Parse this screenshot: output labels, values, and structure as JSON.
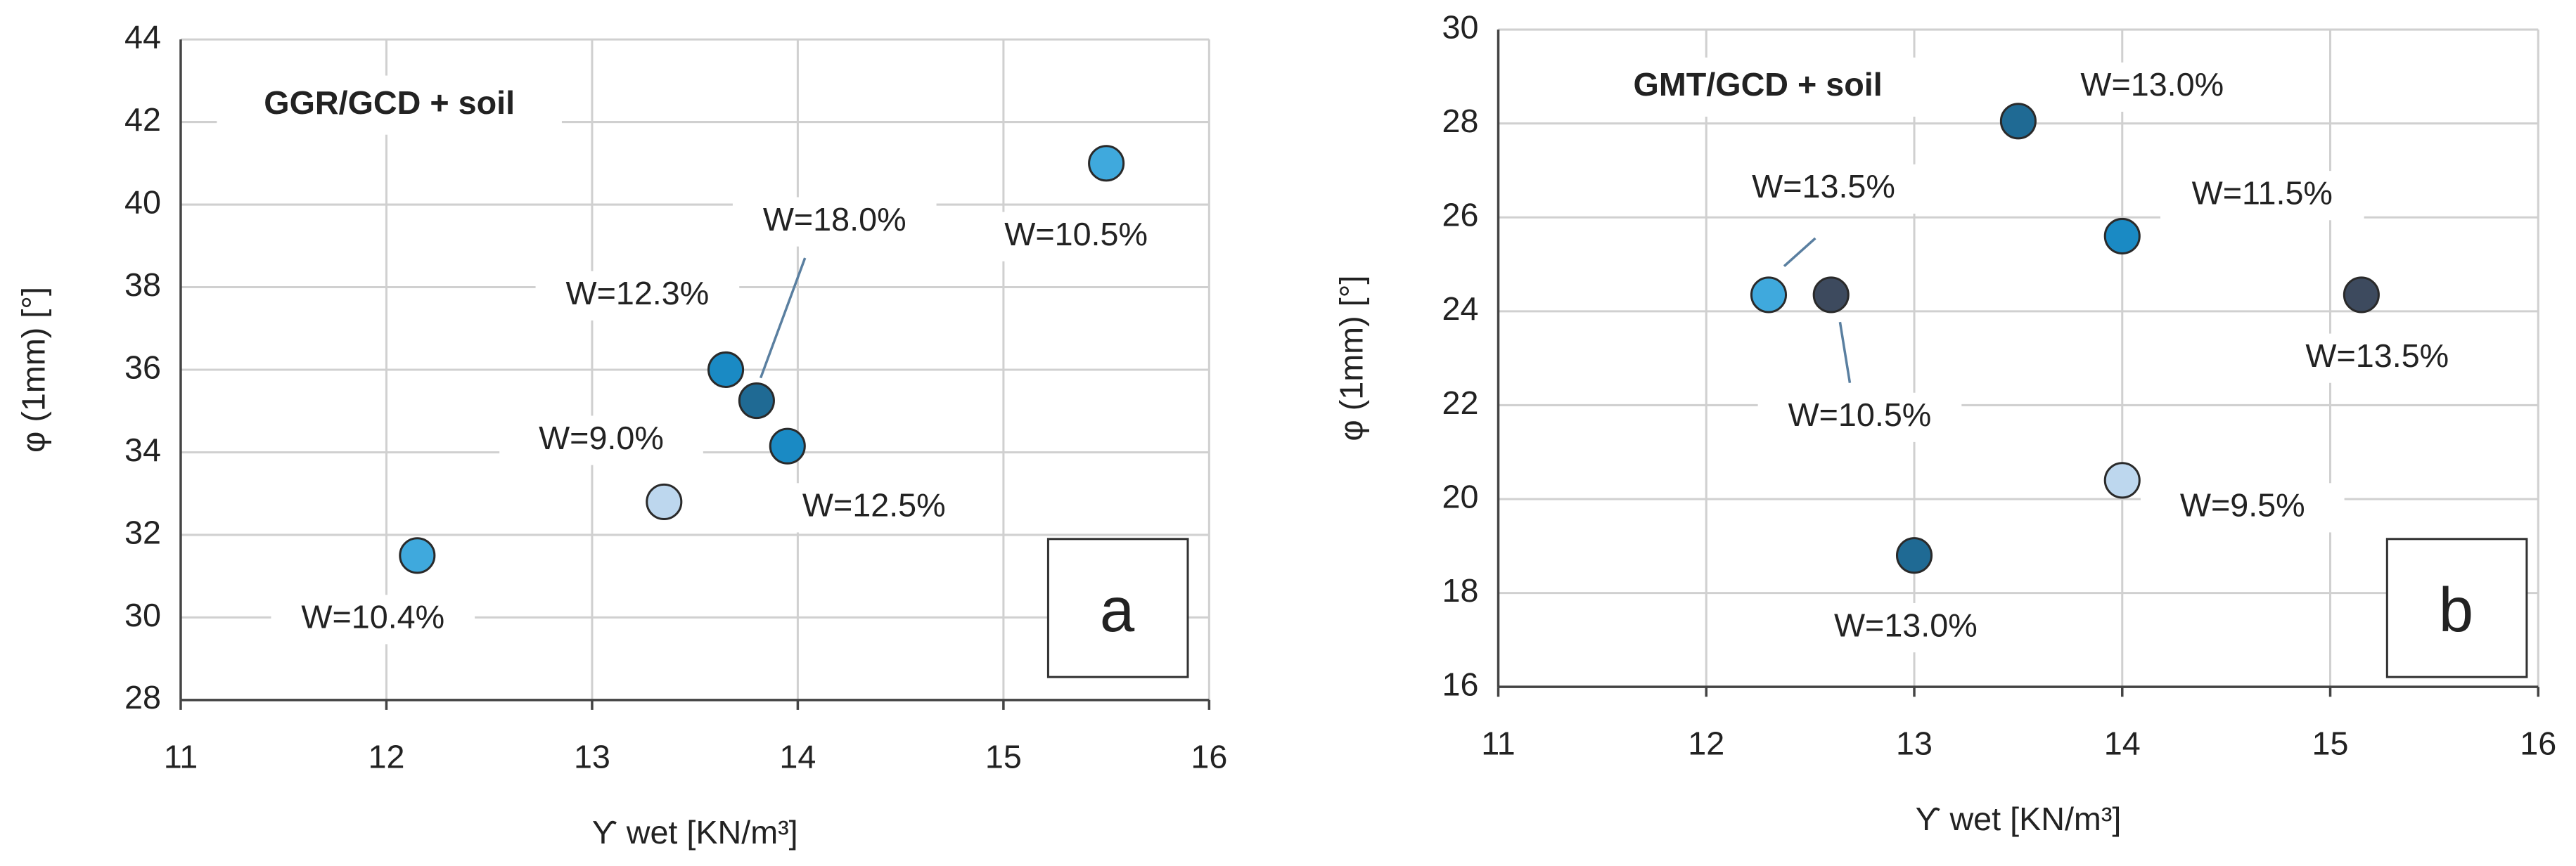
{
  "chart_data": [
    {
      "type": "scatter",
      "title": "GGR/GCD + soil",
      "panel_label": "a",
      "xlabel": "ϒ wet [KN/m³]",
      "ylabel": "φ (1mm) [°]",
      "xlim": [
        11,
        16
      ],
      "ylim": [
        28,
        44
      ],
      "xticks": [
        11,
        12,
        13,
        14,
        15,
        16
      ],
      "yticks": [
        28,
        30,
        32,
        34,
        36,
        38,
        40,
        42,
        44
      ],
      "grid": true,
      "x": [
        12.15,
        13.35,
        13.65,
        13.8,
        13.95,
        15.5
      ],
      "values": [
        31.5,
        32.8,
        36.0,
        35.25,
        34.15,
        41.0
      ],
      "colors": [
        "#3fa9dd",
        "#bdd7ee",
        "#1a8ac4",
        "#1f6a94",
        "#1a8ac4",
        "#3fa9dd"
      ],
      "point_labels": [
        "W=10.4%",
        "W=9.0%",
        "W=12.3%",
        "W=18.0%",
        "W=12.5%",
        "W=10.5%"
      ]
    },
    {
      "type": "scatter",
      "title": "GMT/GCD + soil",
      "panel_label": "b",
      "xlabel": "ϒ wet [KN/m³]",
      "ylabel": "φ (1mm) [°]",
      "xlim": [
        11,
        16
      ],
      "ylim": [
        16,
        30
      ],
      "xticks": [
        11,
        12,
        13,
        14,
        15,
        16
      ],
      "yticks": [
        16,
        18,
        20,
        22,
        24,
        26,
        28,
        30
      ],
      "grid": true,
      "x": [
        13.5,
        12.3,
        12.6,
        14.0,
        15.15,
        14.0,
        13.0
      ],
      "values": [
        28.05,
        24.35,
        24.35,
        25.6,
        24.35,
        20.4,
        18.8
      ],
      "colors": [
        "#1f6a94",
        "#3fa9dd",
        "#3d4a5e",
        "#1a8ac4",
        "#3d4a5e",
        "#bdd7ee",
        "#1f6a94"
      ],
      "point_labels": [
        "W=13.0%",
        "W=13.5%",
        "W=10.5%",
        "W=11.5%",
        "W=13.5%",
        "W=9.5%",
        "W=13.0%"
      ]
    }
  ]
}
